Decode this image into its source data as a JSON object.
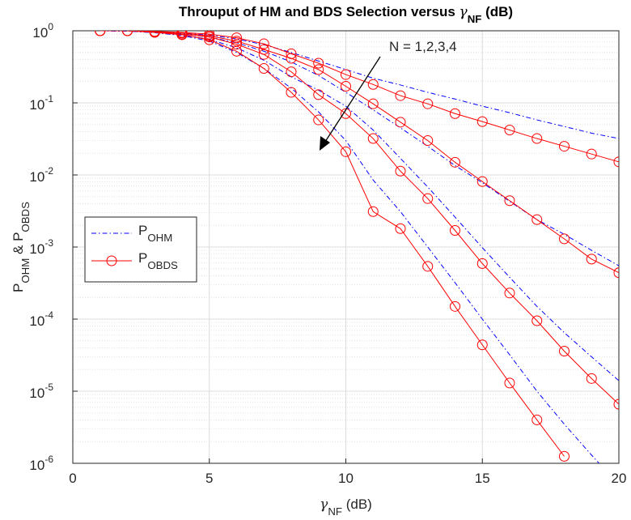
{
  "chart_data": {
    "type": "line",
    "title": [
      {
        "text": "Throuput of HM and BDS Selection versus "
      },
      {
        "text": "γ"
      },
      {
        "text": "NF",
        "sub": true
      },
      {
        "text": " (dB)"
      }
    ],
    "xlabel": [
      {
        "text": "γ"
      },
      {
        "text": "NF",
        "sub": true
      },
      {
        "text": " (dB)"
      }
    ],
    "ylabel": [
      {
        "text": "P"
      },
      {
        "text": "OHM",
        "sub": true
      },
      {
        "text": " & P"
      },
      {
        "text": "OBDS",
        "sub": true
      }
    ],
    "annotation": "N = 1,2,3,4",
    "x": [
      1,
      2,
      3,
      4,
      5,
      6,
      7,
      8,
      9,
      10,
      11,
      12,
      13,
      14,
      15,
      16,
      17,
      18,
      19,
      20
    ],
    "xlim": [
      0,
      20
    ],
    "xticks": [
      0,
      5,
      10,
      15,
      20
    ],
    "ylim": [
      1e-06,
      1
    ],
    "log_y": true,
    "grid": true,
    "minor_grid": true,
    "legend_loc": "west",
    "yticks": [
      {
        "value": 1e-06,
        "label": "10",
        "exp": "-6"
      },
      {
        "value": 1e-05,
        "label": "10",
        "exp": "-5"
      },
      {
        "value": 0.0001,
        "label": "10",
        "exp": "-4"
      },
      {
        "value": 0.001,
        "label": "10",
        "exp": "-3"
      },
      {
        "value": 0.01,
        "label": "10",
        "exp": "-2"
      },
      {
        "value": 0.1,
        "label": "10",
        "exp": "-1"
      },
      {
        "value": 1,
        "label": "10",
        "exp": "0"
      }
    ],
    "series": [
      {
        "name": [
          {
            "text": "P"
          },
          {
            "text": "OHM",
            "sub": true
          }
        ],
        "color": "#0000ff",
        "linestyle": "dashdot",
        "values": [
          1,
          0.99,
          0.97,
          0.93,
          0.87,
          0.77,
          0.64,
          0.5,
          0.38,
          0.29,
          0.22,
          0.177,
          0.14,
          0.113,
          0.09,
          0.073,
          0.058,
          0.047,
          0.038,
          0.032
        ]
      },
      {
        "color": "#0000ff",
        "linestyle": "dashdot",
        "values": [
          1,
          0.99,
          0.96,
          0.91,
          0.82,
          0.68,
          0.52,
          0.37,
          0.24,
          0.14,
          0.08,
          0.045,
          0.025,
          0.0135,
          0.0078,
          0.0043,
          0.0024,
          0.0015,
          0.0009,
          0.00055
        ]
      },
      {
        "color": "#0000ff",
        "linestyle": "dashdot",
        "values": [
          1,
          0.99,
          0.95,
          0.88,
          0.76,
          0.58,
          0.39,
          0.23,
          0.15,
          0.09,
          0.042,
          0.017,
          0.0068,
          0.0026,
          0.00098,
          0.00038,
          0.00015,
          6.5e-05,
          3e-05,
          1.4e-05
        ]
      },
      {
        "color": "#0000ff",
        "linestyle": "dashdot",
        "values": [
          1,
          0.99,
          0.94,
          0.86,
          0.72,
          0.5,
          0.3,
          0.16,
          0.075,
          0.03,
          0.0085,
          0.0031,
          0.001,
          0.00032,
          0.0001,
          3.2e-05,
          1e-05,
          3.5e-06,
          1.3e-06,
          5e-07
        ]
      },
      {
        "name": [
          {
            "text": "P"
          },
          {
            "text": "OBDS",
            "sub": true
          }
        ],
        "color": "#ff0000",
        "linestyle": "solid",
        "marker": "o",
        "values": [
          1,
          1,
          0.98,
          0.95,
          0.9,
          0.8,
          0.66,
          0.48,
          0.355,
          0.247,
          0.18,
          0.126,
          0.097,
          0.071,
          0.055,
          0.042,
          0.032,
          0.025,
          0.0195,
          0.0152
        ]
      },
      {
        "color": "#ff0000",
        "linestyle": "solid",
        "marker": "o",
        "values": [
          1,
          1,
          0.97,
          0.93,
          0.85,
          0.72,
          0.55,
          0.415,
          0.29,
          0.17,
          0.097,
          0.054,
          0.03,
          0.015,
          0.0081,
          0.0044,
          0.0024,
          0.0013,
          0.00068,
          0.00044
        ]
      },
      {
        "color": "#ff0000",
        "linestyle": "solid",
        "marker": "o",
        "values": [
          1,
          1,
          0.96,
          0.9,
          0.82,
          0.65,
          0.47,
          0.27,
          0.13,
          0.071,
          0.032,
          0.0113,
          0.0047,
          0.0017,
          0.00059,
          0.00023,
          9.5e-05,
          3.6e-05,
          1.5e-05,
          6.6e-06
        ]
      },
      {
        "color": "#ff0000",
        "linestyle": "solid",
        "marker": "o",
        "values": [
          1,
          1,
          0.95,
          0.88,
          0.75,
          0.52,
          0.3,
          0.14,
          0.058,
          0.021,
          0.0031,
          0.0018,
          0.00054,
          0.00015,
          4.4e-05,
          1.3e-05,
          4e-06,
          1.25e-06,
          null,
          null
        ]
      }
    ]
  }
}
